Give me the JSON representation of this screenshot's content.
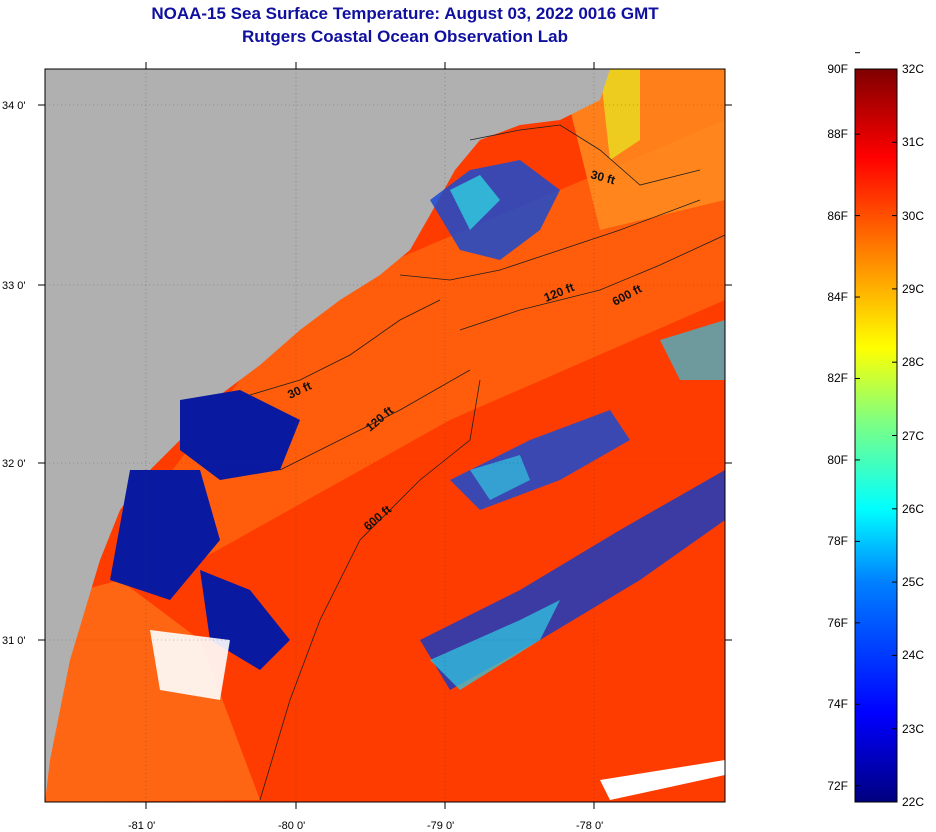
{
  "title": {
    "line1": "NOAA-15 Sea Surface Temperature:  August 03, 2022 0016 GMT",
    "line2": "Rutgers Coastal Ocean Observation Lab"
  },
  "map": {
    "lat_ticks": [
      "34 0'",
      "33 0'",
      "32 0'",
      "31 0'"
    ],
    "lon_ticks": [
      "-81 0'",
      "-80 0'",
      "-79 0'",
      "-78 0'"
    ],
    "depth_labels": [
      "30 ft",
      "120 ft",
      "600 ft",
      "30 ft",
      "120 ft",
      "600 ft"
    ]
  },
  "colorbar": {
    "fahrenheit": [
      "90F",
      "88F",
      "86F",
      "84F",
      "82F",
      "80F",
      "78F",
      "76F",
      "74F",
      "72F"
    ],
    "celsius": [
      "32C",
      "31C",
      "30C",
      "29C",
      "28C",
      "27C",
      "26C",
      "25C",
      "24C",
      "23C",
      "22C"
    ],
    "colors": [
      "#00007f",
      "#0000ff",
      "#0080ff",
      "#00ffff",
      "#80ff80",
      "#ffff00",
      "#ff8000",
      "#ff0000",
      "#7f0000"
    ]
  },
  "colors": {
    "land": "#b0b0b0",
    "ocean_warm": "#ff3000",
    "ocean_orange": "#ff6a10",
    "cool_blue": "#0a1aa0",
    "cyan": "#20c8e0",
    "title": "#1010a0"
  }
}
